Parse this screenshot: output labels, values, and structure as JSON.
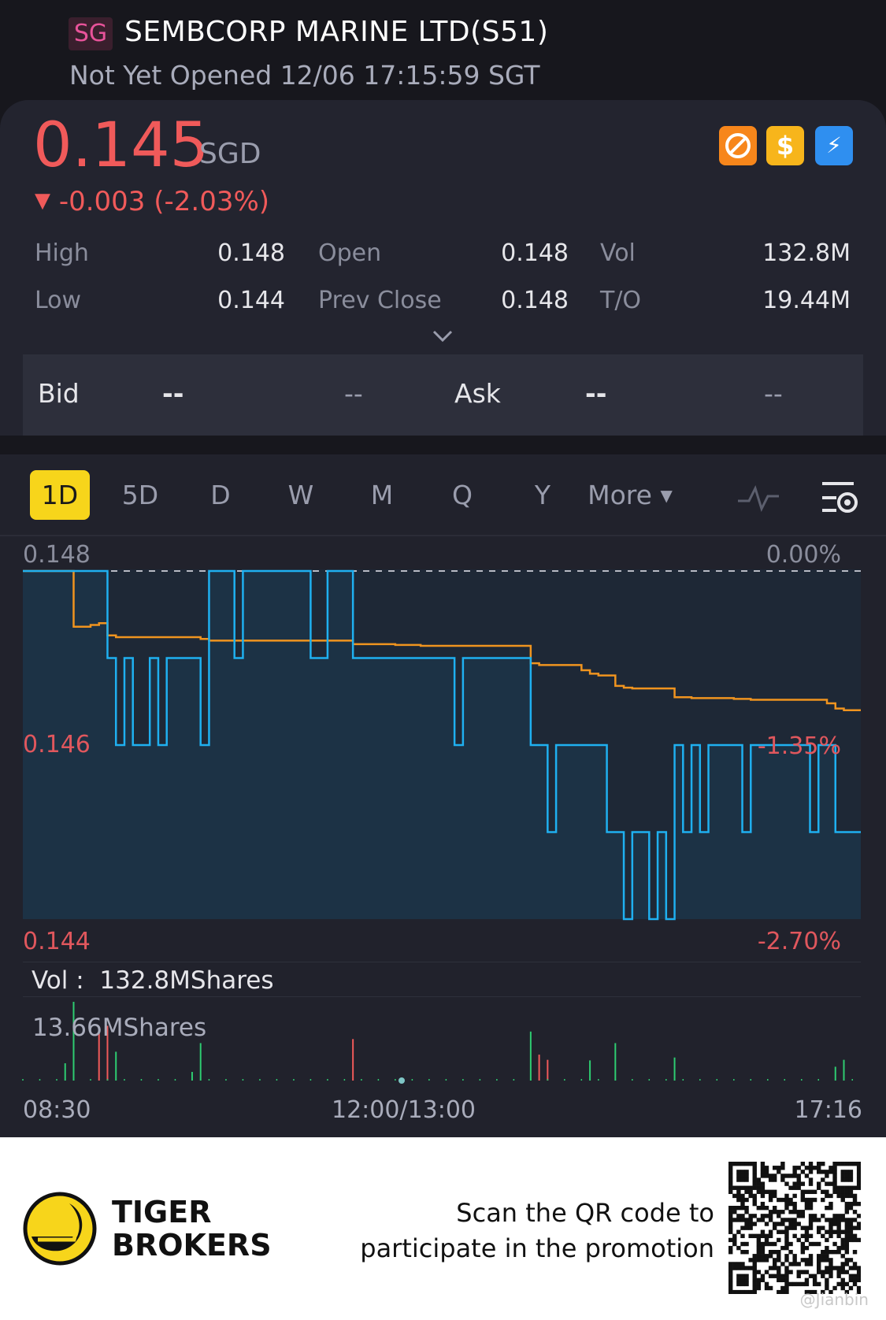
{
  "header": {
    "market_badge": "SG",
    "title": "SEMBCORP MARINE LTD(S51)",
    "status": "Not Yet Opened 12/06 17:15:59 SGT"
  },
  "quote": {
    "price": "0.145",
    "currency": "SGD",
    "change": "-0.003 (-2.03%)",
    "change_arrow": "▼",
    "color_down": "#f05a5a",
    "badges": [
      {
        "icon": "no-short-icon",
        "color": "#f7861b"
      },
      {
        "icon": "dollar-icon",
        "color": "#f7b51b",
        "glyph": "$"
      },
      {
        "icon": "lightning-icon",
        "color": "#2f8ff0",
        "glyph": "⚡"
      }
    ],
    "stats": [
      {
        "label": "High",
        "value": "0.148"
      },
      {
        "label": "Open",
        "value": "0.148"
      },
      {
        "label": "Vol",
        "value": "132.8M"
      },
      {
        "label": "Low",
        "value": "0.144"
      },
      {
        "label": "Prev Close",
        "value": "0.148"
      },
      {
        "label": "T/O",
        "value": "19.44M"
      }
    ]
  },
  "orderbook": {
    "bid_label": "Bid",
    "bid_price": "--",
    "bid_size": "--",
    "ask_label": "Ask",
    "ask_price": "--",
    "ask_size": "--"
  },
  "tabs": [
    "1D",
    "5D",
    "D",
    "W",
    "M",
    "Q",
    "Y",
    "More"
  ],
  "active_tab": "1D",
  "chart_data": {
    "type": "line",
    "ylim": [
      0.144,
      0.148
    ],
    "y_ticks_left": [
      "0.148",
      "0.146",
      "0.144"
    ],
    "y_ticks_right": [
      "0.00%",
      "-1.35%",
      "-2.70%"
    ],
    "prev_close": 0.148,
    "x_ticks": [
      "08:30",
      "12:00/13:00",
      "17:16"
    ],
    "series": [
      {
        "name": "price",
        "color": "#1fb0f0",
        "values": [
          0.148,
          0.148,
          0.148,
          0.148,
          0.148,
          0.148,
          0.148,
          0.148,
          0.148,
          0.148,
          0.147,
          0.146,
          0.147,
          0.146,
          0.146,
          0.147,
          0.146,
          0.147,
          0.147,
          0.147,
          0.147,
          0.146,
          0.148,
          0.148,
          0.148,
          0.147,
          0.148,
          0.148,
          0.148,
          0.148,
          0.148,
          0.148,
          0.148,
          0.148,
          0.147,
          0.147,
          0.148,
          0.148,
          0.148,
          0.147,
          0.147,
          0.147,
          0.147,
          0.147,
          0.147,
          0.147,
          0.147,
          0.147,
          0.147,
          0.147,
          0.147,
          0.146,
          0.147,
          0.147,
          0.147,
          0.147,
          0.147,
          0.147,
          0.147,
          0.147,
          0.146,
          0.146,
          0.145,
          0.146,
          0.146,
          0.146,
          0.146,
          0.146,
          0.146,
          0.145,
          0.145,
          0.144,
          0.145,
          0.145,
          0.144,
          0.145,
          0.144,
          0.146,
          0.145,
          0.146,
          0.145,
          0.146,
          0.146,
          0.146,
          0.146,
          0.145,
          0.146,
          0.146,
          0.146,
          0.146,
          0.146,
          0.146,
          0.146,
          0.145,
          0.146,
          0.146,
          0.145,
          0.145,
          0.145,
          0.145
        ]
      },
      {
        "name": "average",
        "color": "#f0941f",
        "values": [
          0.148,
          0.148,
          0.148,
          0.148,
          0.148,
          0.148,
          0.14736,
          0.14736,
          0.14738,
          0.1474,
          0.14726,
          0.14724,
          0.14724,
          0.14724,
          0.14724,
          0.14724,
          0.14724,
          0.14724,
          0.14724,
          0.14724,
          0.14724,
          0.14722,
          0.1472,
          0.1472,
          0.1472,
          0.1472,
          0.1472,
          0.1472,
          0.1472,
          0.1472,
          0.1472,
          0.1472,
          0.1472,
          0.1472,
          0.1472,
          0.1472,
          0.1472,
          0.1472,
          0.1472,
          0.14716,
          0.14716,
          0.14716,
          0.14716,
          0.14716,
          0.14715,
          0.14715,
          0.14715,
          0.14714,
          0.14714,
          0.14714,
          0.14714,
          0.14714,
          0.14714,
          0.14714,
          0.14714,
          0.14714,
          0.14714,
          0.14714,
          0.14714,
          0.14714,
          0.14694,
          0.14692,
          0.14692,
          0.14692,
          0.14692,
          0.14692,
          0.14686,
          0.14682,
          0.1468,
          0.1468,
          0.14668,
          0.14666,
          0.14665,
          0.14665,
          0.14665,
          0.14665,
          0.14665,
          0.14655,
          0.14655,
          0.14654,
          0.14654,
          0.14654,
          0.14654,
          0.14654,
          0.14653,
          0.14653,
          0.14652,
          0.14652,
          0.14652,
          0.14652,
          0.14652,
          0.14652,
          0.14652,
          0.14652,
          0.14652,
          0.14648,
          0.14642,
          0.1464,
          0.1464,
          0.1464
        ]
      }
    ],
    "volume": {
      "label": "Vol :",
      "total": "132.8MShares",
      "max_label": "13.66MShares",
      "max": 13.66,
      "bars": [
        [
          5,
          3,
          "#2ecc71"
        ],
        [
          6,
          13.66,
          "#2ecc71"
        ],
        [
          9,
          8.2,
          "#f05a5a"
        ],
        [
          10,
          9.5,
          "#f05a5a"
        ],
        [
          11,
          5,
          "#2ecc71"
        ],
        [
          20,
          1.5,
          "#2ecc71"
        ],
        [
          21,
          6.5,
          "#2ecc71"
        ],
        [
          39,
          7.2,
          "#f05a5a"
        ],
        [
          60,
          8.5,
          "#2ecc71"
        ],
        [
          61,
          4.5,
          "#f05a5a"
        ],
        [
          62,
          3.6,
          "#f05a5a"
        ],
        [
          67,
          3.5,
          "#2ecc71"
        ],
        [
          70,
          6.5,
          "#2ecc71"
        ],
        [
          77,
          4,
          "#2ecc71"
        ],
        [
          96,
          2.4,
          "#2ecc71"
        ],
        [
          97,
          3.6,
          "#2ecc71"
        ]
      ]
    }
  },
  "footer": {
    "brand_line1": "TIGER",
    "brand_line2": "BROKERS",
    "promo_line1": "Scan the QR code to",
    "promo_line2": "participate in the promotion",
    "watermark": "@Jianbin"
  }
}
